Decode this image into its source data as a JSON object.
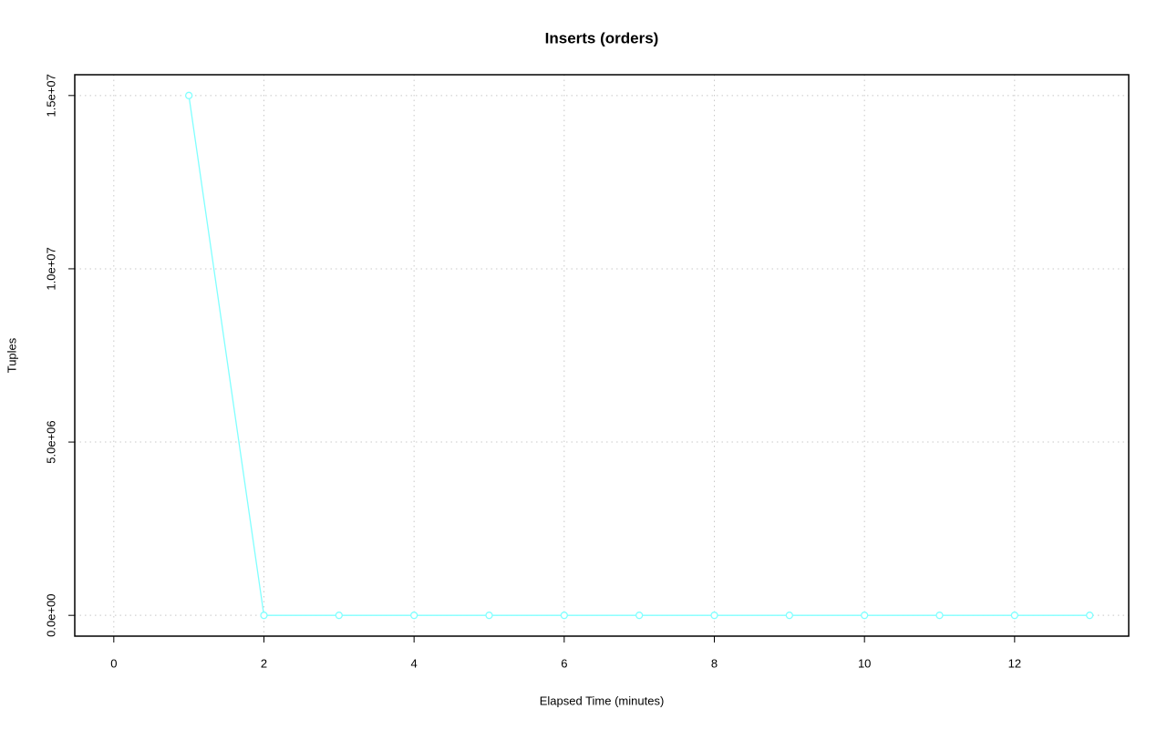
{
  "chart_data": {
    "type": "line",
    "title": "Inserts (orders)",
    "x_label": "Elapsed Time (minutes)",
    "y_label": "Tuples",
    "x": [
      1,
      2,
      3,
      4,
      5,
      6,
      7,
      8,
      9,
      10,
      11,
      12,
      13
    ],
    "series": [
      {
        "name": "orders",
        "color": "#80ffff",
        "values": [
          15000000,
          0,
          0,
          0,
          0,
          0,
          0,
          0,
          0,
          0,
          0,
          0,
          0
        ]
      }
    ],
    "xlim": [
      -0.52,
      13.52
    ],
    "xticks": [
      0,
      2,
      4,
      6,
      8,
      10,
      12
    ],
    "ylim": [
      -600000,
      15600000
    ],
    "yticks": [
      {
        "value": 0,
        "label": "0.0e+00"
      },
      {
        "value": 5000000,
        "label": "5.0e+06"
      },
      {
        "value": 10000000,
        "label": "1.0e+07"
      },
      {
        "value": 15000000,
        "label": "1.5e+07"
      }
    ],
    "grid": true
  }
}
